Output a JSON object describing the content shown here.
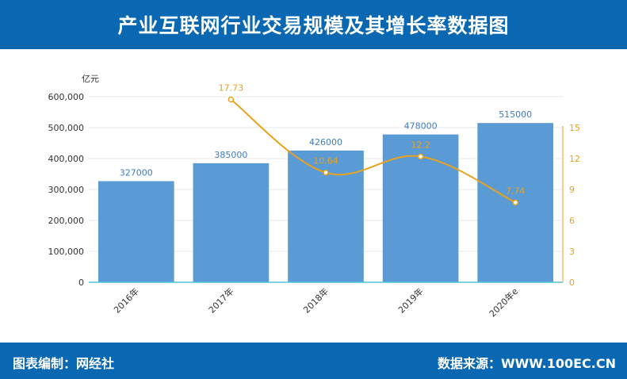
{
  "header": {
    "title": "产业互联网行业交易规模及其增长率数据图"
  },
  "footer": {
    "left": "图表编制：网经社",
    "right": "数据来源：WWW.100EC.CN"
  },
  "chart_data": {
    "type": "bar",
    "title": "产业互联网行业交易规模及其增长率数据图",
    "categories": [
      "2016年",
      "2017年",
      "2018年",
      "2019年",
      "2020年e"
    ],
    "y_unit_label": "亿元",
    "ylim": [
      0,
      600000
    ],
    "y_ticks": [
      "0",
      "100,000",
      "200,000",
      "300,000",
      "400,000",
      "500,000",
      "600,000"
    ],
    "y2lim": [
      0,
      18
    ],
    "y2_ticks": [
      "0",
      "3",
      "6",
      "9",
      "12",
      "15"
    ],
    "series": [
      {
        "type": "bar",
        "axis": "left",
        "color": "#5b9bd5",
        "values": [
          327000,
          385000,
          426000,
          478000,
          515000
        ],
        "labels": [
          "327000",
          "385000",
          "426000",
          "478000",
          "515000"
        ]
      },
      {
        "type": "line",
        "axis": "right",
        "color": "#e8a21c",
        "values": [
          null,
          17.73,
          10.64,
          12.2,
          7.74
        ],
        "labels": [
          "",
          "17.73",
          "10.64",
          "12.2",
          "7.74"
        ]
      }
    ],
    "grid": true
  }
}
